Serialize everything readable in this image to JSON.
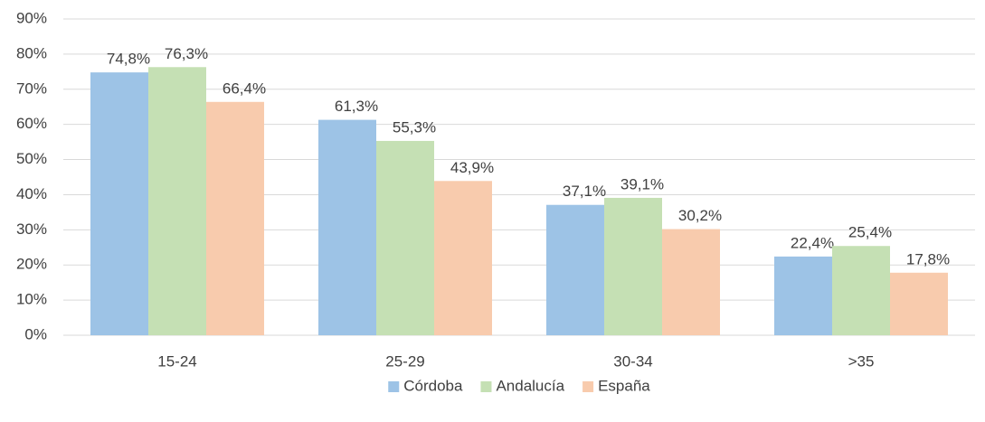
{
  "chart_data": {
    "type": "bar",
    "categories": [
      "15-24",
      "25-29",
      "30-34",
      ">35"
    ],
    "series": [
      {
        "name": "Córdoba",
        "color": "#9dc3e6",
        "values": [
          74.8,
          61.3,
          37.1,
          22.4
        ],
        "value_labels": [
          "74,8%",
          "61,3%",
          "37,1%",
          "22,4%"
        ]
      },
      {
        "name": "Andalucía",
        "color": "#c5e0b4",
        "values": [
          76.3,
          55.3,
          39.1,
          25.4
        ],
        "value_labels": [
          "76,3%",
          "55,3%",
          "39,1%",
          "25,4%"
        ]
      },
      {
        "name": "España",
        "color": "#f8cbad",
        "values": [
          66.4,
          43.9,
          30.2,
          17.8
        ],
        "value_labels": [
          "66,4%",
          "43,9%",
          "30,2%",
          "17,8%"
        ]
      }
    ],
    "ylim": [
      0,
      90
    ],
    "yticks": [
      {
        "value": 0,
        "label": "0%"
      },
      {
        "value": 10,
        "label": "10%"
      },
      {
        "value": 20,
        "label": "20%"
      },
      {
        "value": 30,
        "label": "30%"
      },
      {
        "value": 40,
        "label": "40%"
      },
      {
        "value": 50,
        "label": "50%"
      },
      {
        "value": 60,
        "label": "60%"
      },
      {
        "value": 70,
        "label": "70%"
      },
      {
        "value": 80,
        "label": "80%"
      },
      {
        "value": 90,
        "label": "90%"
      }
    ],
    "grid": true,
    "legend": "bottom"
  }
}
